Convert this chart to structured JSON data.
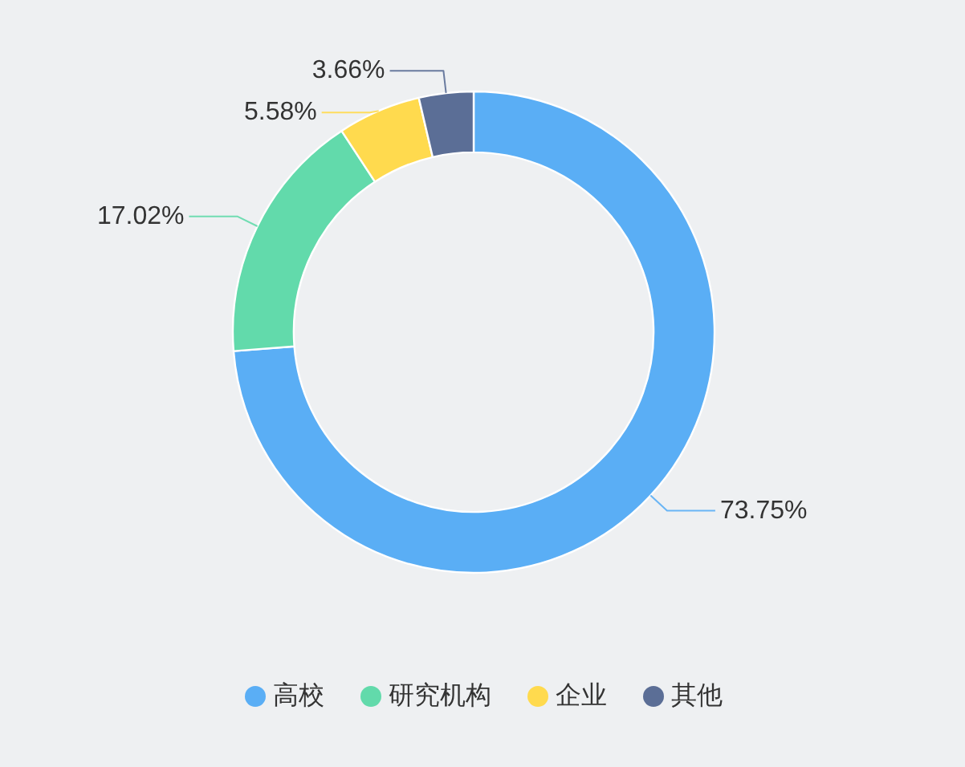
{
  "chart_data": {
    "type": "donut",
    "categories": [
      "高校",
      "研究机构",
      "企业",
      "其他"
    ],
    "values": [
      73.75,
      17.02,
      5.58,
      3.66
    ],
    "colors": [
      "#5aaef5",
      "#62daab",
      "#ffda4e",
      "#5b6e96"
    ],
    "value_labels": [
      "73.75%",
      "17.02%",
      "5.58%",
      "3.66%"
    ],
    "legend": "bottom"
  }
}
